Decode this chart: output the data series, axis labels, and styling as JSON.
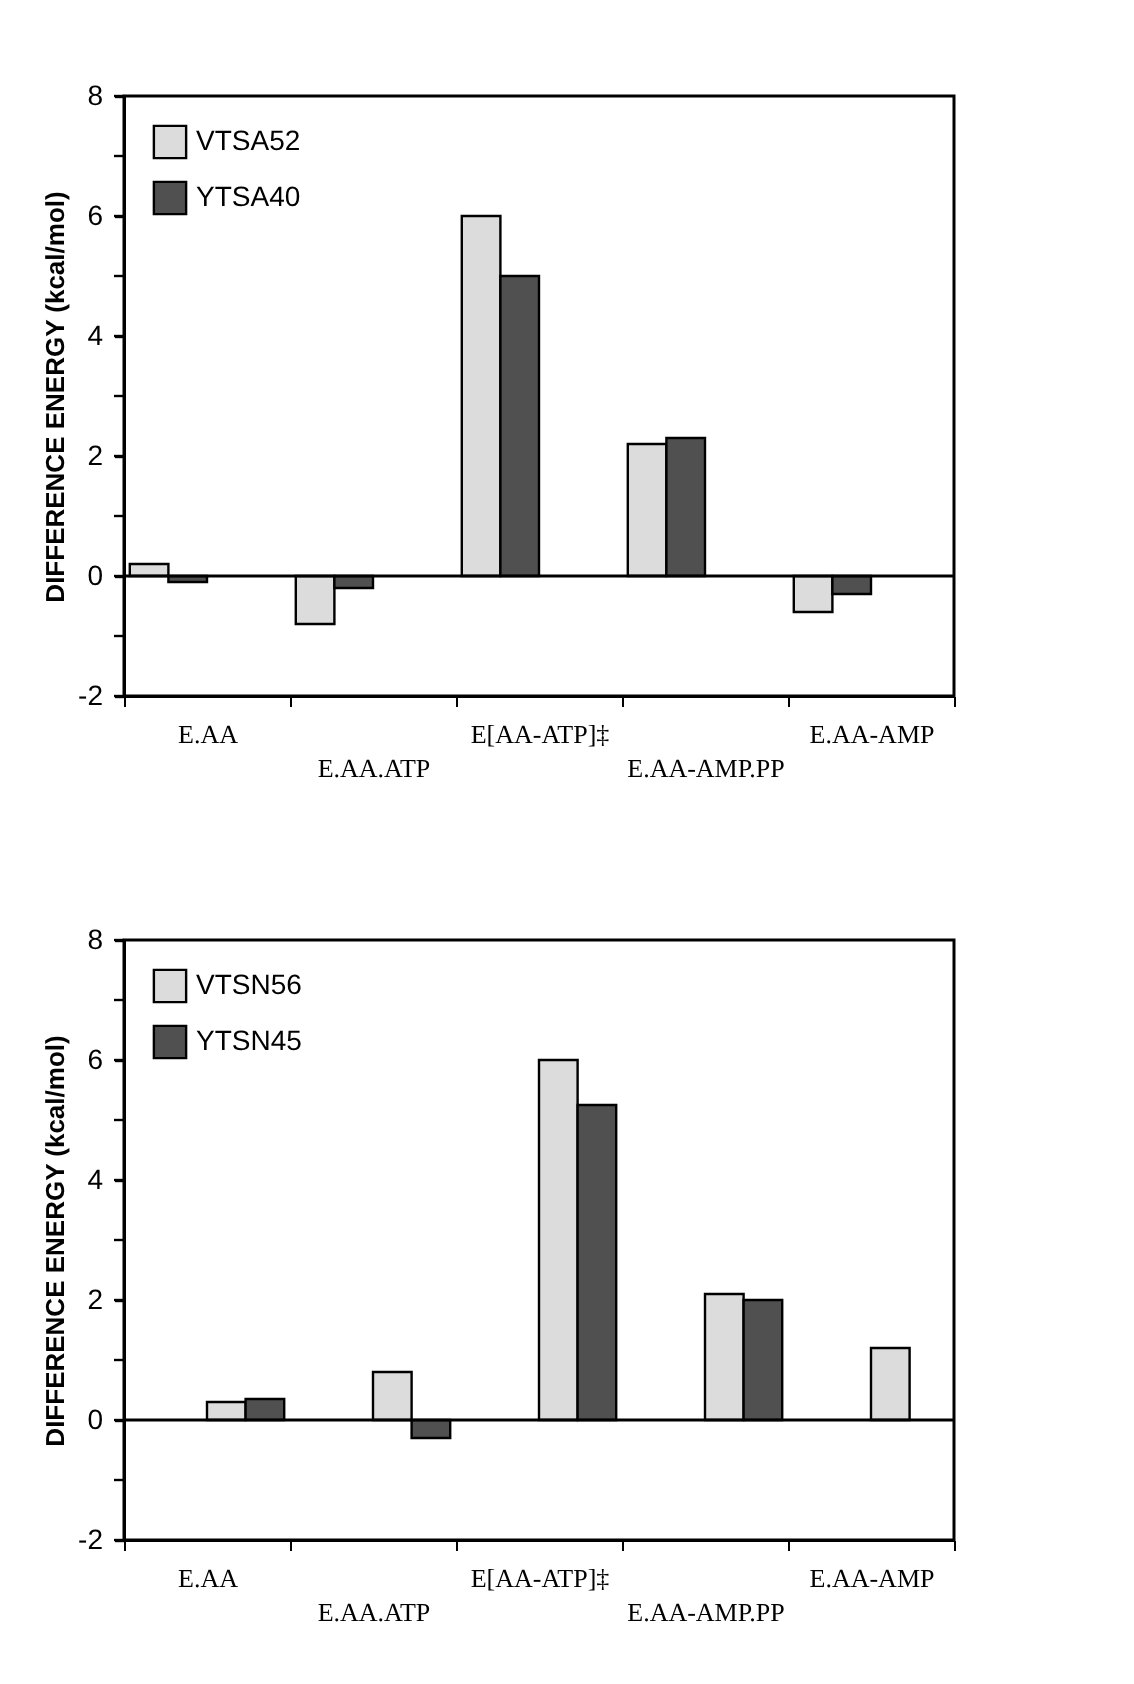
{
  "chart_data": [
    {
      "type": "bar",
      "ylabel": "DIFFERENCE ENERGY (kcal/mol)",
      "categories": [
        "E.AA",
        "E.AA.ATP",
        "E[AA-ATP]‡",
        "E.AA-AMP.PP",
        "E.AA-AMP"
      ],
      "series": [
        {
          "name": "VTSA52",
          "color": "#dcdcdc",
          "values": [
            0.2,
            -0.8,
            6,
            2.2,
            -0.6
          ]
        },
        {
          "name": "YTSA40",
          "color": "#505050",
          "values": [
            -0.1,
            -0.2,
            5,
            2.3,
            -0.3
          ]
        }
      ],
      "ylim": [
        -2,
        8
      ],
      "yticks": [
        -2,
        {
          "value": -1,
          "label": null
        },
        0,
        {
          "value": 1,
          "label": null
        },
        2,
        {
          "value": 3,
          "label": null
        },
        4,
        {
          "value": 5,
          "label": null
        },
        6,
        {
          "value": 7,
          "label": null
        },
        8
      ],
      "ref_lines": [
        {
          "axis": "y",
          "value": 0,
          "color": "#000000"
        }
      ],
      "legend": "top left",
      "grid": false
    },
    {
      "type": "bar",
      "ylabel": "DIFFERENCE ENERGY (kcal/mol)",
      "categories": [
        "E.AA",
        "E.AA.ATP",
        "E[AA-ATP]‡",
        "E.AA-AMP.PP",
        "E.AA-AMP"
      ],
      "series": [
        {
          "name": "VTSN56",
          "color": "#dcdcdc",
          "values": [
            0.3,
            0.8,
            6,
            2.1,
            1.2
          ]
        },
        {
          "name": "YTSN45",
          "color": "#505050",
          "values": [
            0.35,
            -0.3,
            5.25,
            2.0,
            null
          ]
        }
      ],
      "ylim": [
        -2,
        8
      ],
      "yticks": [
        -2,
        {
          "value": -1,
          "label": null
        },
        0,
        {
          "value": 1,
          "label": null
        },
        2,
        {
          "value": 3,
          "label": null
        },
        4,
        {
          "value": 5,
          "label": null
        },
        6,
        {
          "value": 7,
          "label": null
        },
        8
      ],
      "ref_lines": [
        {
          "axis": "y",
          "value": 0,
          "color": "#000000"
        }
      ],
      "legend": "top left",
      "grid": false
    }
  ]
}
